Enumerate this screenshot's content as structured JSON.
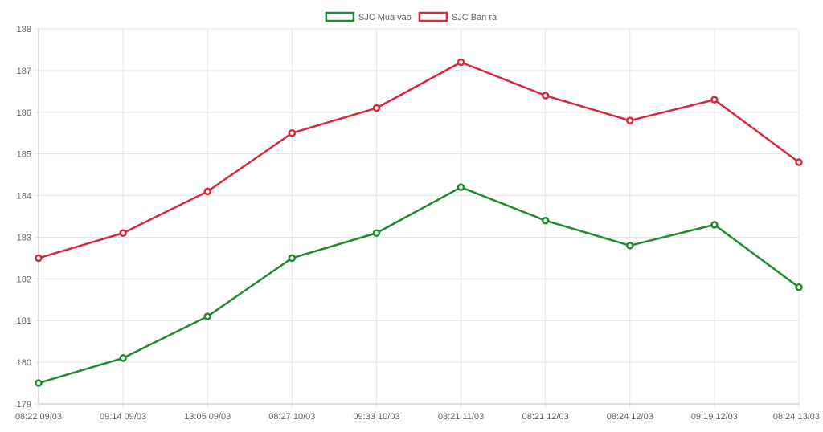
{
  "chart_data": {
    "type": "line",
    "title": "",
    "xlabel": "",
    "ylabel": "",
    "grid": true,
    "legend_position": "top-center",
    "categories": [
      "08:22 09/03",
      "09:14 09/03",
      "13:05 09/03",
      "08:27 10/03",
      "09:33 10/03",
      "08:21 11/03",
      "08:21 12/03",
      "08:24 12/03",
      "09:19 12/03",
      "08:24 13/03"
    ],
    "ylim": [
      179,
      188
    ],
    "yticks": [
      "179",
      "180",
      "181",
      "182",
      "183",
      "184",
      "185",
      "186",
      "187",
      "188"
    ],
    "series": [
      {
        "name": "SJC Mua vào",
        "color": "#1f8a2e",
        "values": [
          179.5,
          180.1,
          181.1,
          182.5,
          183.1,
          184.2,
          183.4,
          182.8,
          183.3,
          181.8
        ]
      },
      {
        "name": "SJC Bán ra",
        "color": "#d9283c",
        "values": [
          182.5,
          183.1,
          184.1,
          185.5,
          186.1,
          187.2,
          186.4,
          185.8,
          186.3,
          184.8
        ]
      }
    ]
  }
}
